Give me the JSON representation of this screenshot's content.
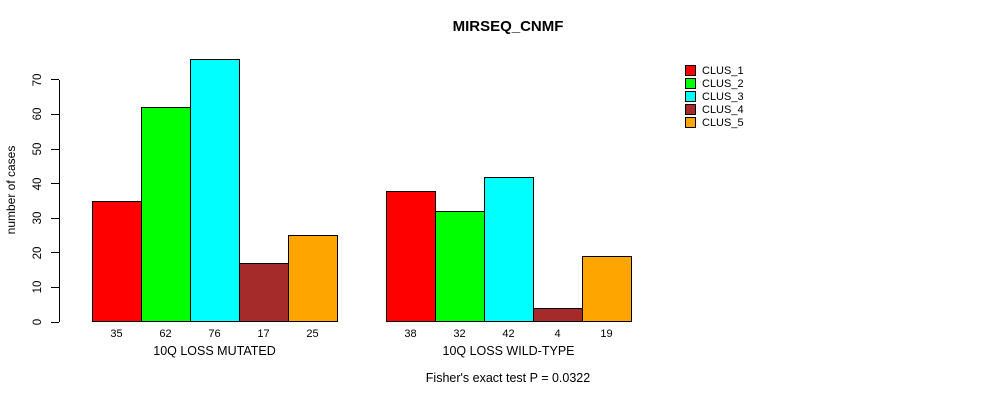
{
  "chart_data": {
    "type": "bar",
    "title": "MIRSEQ_CNMF",
    "ylabel": "number of cases",
    "yticks": [
      0,
      10,
      20,
      30,
      40,
      50,
      60,
      70
    ],
    "axis_range": [
      0,
      70
    ],
    "grid": false,
    "legend_position": "right",
    "groups": [
      {
        "label": "10Q LOSS MUTATED",
        "values": [
          35,
          62,
          76,
          17,
          25
        ]
      },
      {
        "label": "10Q LOSS WILD-TYPE",
        "values": [
          38,
          32,
          42,
          4,
          19
        ]
      }
    ],
    "legend": [
      {
        "label": "CLUS_1",
        "color": "#FF0000"
      },
      {
        "label": "CLUS_2",
        "color": "#00FF00"
      },
      {
        "label": "CLUS_3",
        "color": "#00FFFF"
      },
      {
        "label": "CLUS_4",
        "color": "#A52A2A"
      },
      {
        "label": "CLUS_5",
        "color": "#FFA500"
      }
    ],
    "footnote": "Fisher's exact test P = 0.0322"
  }
}
